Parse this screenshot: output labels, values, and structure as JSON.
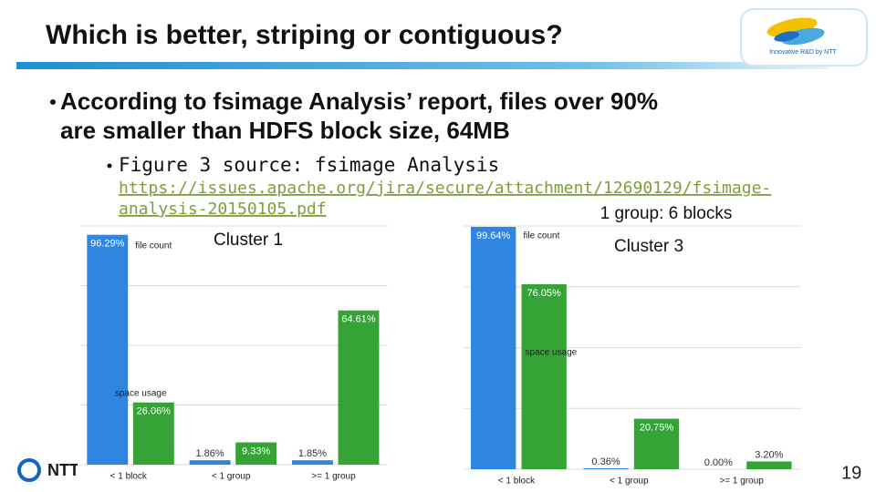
{
  "header": {
    "title": "Which is better, striping or contiguous?",
    "logo_caption": "Innovative R&D by NTT"
  },
  "bullet": {
    "lines": [
      "According to fsimage Analysis’ report, files over 90%",
      "are smaller than HDFS block size, 64MB"
    ]
  },
  "sub_bullet": {
    "text": "Figure 3 source: fsimage Analysis",
    "link_lines": [
      "https://issues.apache.org/jira/secure/attachment/12690129/fsimage-",
      "analysis-20150105.pdf"
    ]
  },
  "footer": {
    "company": "NTT",
    "page_number": "19"
  },
  "chart_data": [
    {
      "type": "bar",
      "title": "Cluster 1",
      "categories": [
        "< 1 block",
        "< 1 group",
        ">= 1 group"
      ],
      "series": [
        {
          "name": "file count",
          "color": "#2f86e0",
          "values": [
            96.29,
            1.86,
            1.85
          ],
          "value_labels": [
            "96.29%",
            "1.86%",
            "1.85%"
          ]
        },
        {
          "name": "space usage",
          "color": "#36a336",
          "values": [
            26.06,
            9.33,
            64.61
          ],
          "value_labels": [
            "26.06%",
            "9.33%",
            "64.61%"
          ]
        }
      ],
      "ylim": [
        0,
        100
      ],
      "yticks": [
        0,
        25,
        50,
        75,
        100
      ],
      "grid": true
    },
    {
      "type": "bar",
      "title": "Cluster 3",
      "annotation": "1 group: 6 blocks",
      "categories": [
        "< 1 block",
        "< 1 group",
        ">= 1 group"
      ],
      "series": [
        {
          "name": "file count",
          "color": "#2f86e0",
          "values": [
            99.64,
            0.36,
            0.0
          ],
          "value_labels": [
            "99.64%",
            "0.36%",
            "0.00%"
          ]
        },
        {
          "name": "space usage",
          "color": "#36a336",
          "values": [
            76.05,
            20.75,
            3.2
          ],
          "value_labels": [
            "76.05%",
            "20.75%",
            "3.20%"
          ]
        }
      ],
      "ylim": [
        0,
        100
      ],
      "yticks": [
        0,
        25,
        50,
        75,
        100
      ],
      "grid": true
    }
  ]
}
